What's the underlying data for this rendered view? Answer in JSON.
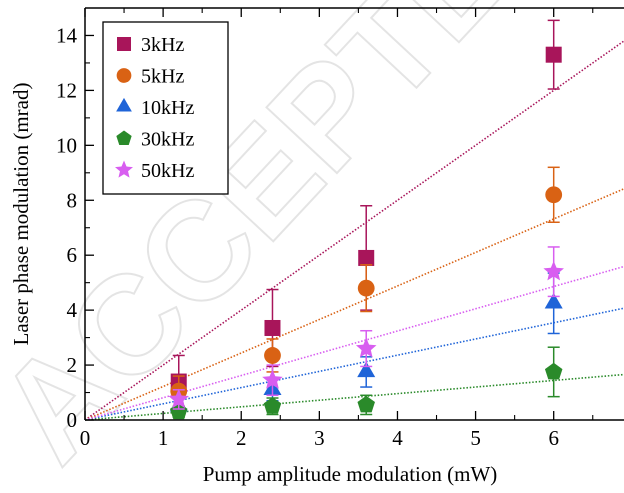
{
  "chart_data": {
    "type": "scatter",
    "xlabel": "Pump amplitude modulation (mW)",
    "ylabel": "Laser phase modulation (mrad)",
    "xlim": [
      0,
      6.9
    ],
    "ylim": [
      0,
      15
    ],
    "xticks": [
      0,
      1,
      2,
      3,
      4,
      5,
      6
    ],
    "yticks": [
      0,
      2,
      4,
      6,
      8,
      10,
      12,
      14
    ],
    "grid": false,
    "legend_position": "top-left",
    "watermark_text": "ACCEPTED MANUSCRIPT",
    "series": [
      {
        "name": "3kHz",
        "marker": "square",
        "color": "#a8155a",
        "fit_slope": 2.0,
        "x": [
          1.2,
          2.4,
          3.6,
          6.0
        ],
        "y": [
          1.4,
          3.35,
          5.9,
          13.3
        ],
        "err": [
          0.95,
          1.4,
          1.9,
          1.25
        ]
      },
      {
        "name": "5kHz",
        "marker": "circle",
        "color": "#d96214",
        "fit_slope": 1.22,
        "x": [
          1.2,
          2.4,
          3.6,
          6.0
        ],
        "y": [
          1.05,
          2.35,
          4.8,
          8.2
        ],
        "err": [
          0.55,
          0.6,
          0.85,
          1.0
        ]
      },
      {
        "name": "10kHz",
        "marker": "triangle",
        "color": "#1f64d8",
        "fit_slope": 0.59,
        "x": [
          1.2,
          2.4,
          3.6,
          6.0
        ],
        "y": [
          0.5,
          1.1,
          1.75,
          4.25
        ],
        "err": [
          0.35,
          0.4,
          0.55,
          1.1
        ]
      },
      {
        "name": "30kHz",
        "marker": "pentagon",
        "color": "#2a8a2a",
        "fit_slope": 0.24,
        "x": [
          1.2,
          2.4,
          3.6,
          6.0
        ],
        "y": [
          0.3,
          0.5,
          0.55,
          1.75
        ],
        "err": [
          0.2,
          0.3,
          0.35,
          0.9
        ]
      },
      {
        "name": "50kHz",
        "marker": "star",
        "color": "#d85ef0",
        "fit_slope": 0.81,
        "x": [
          1.2,
          2.4,
          3.6,
          6.0
        ],
        "y": [
          0.75,
          1.45,
          2.6,
          5.4
        ],
        "err": [
          0.35,
          0.55,
          0.65,
          0.9
        ]
      }
    ]
  }
}
